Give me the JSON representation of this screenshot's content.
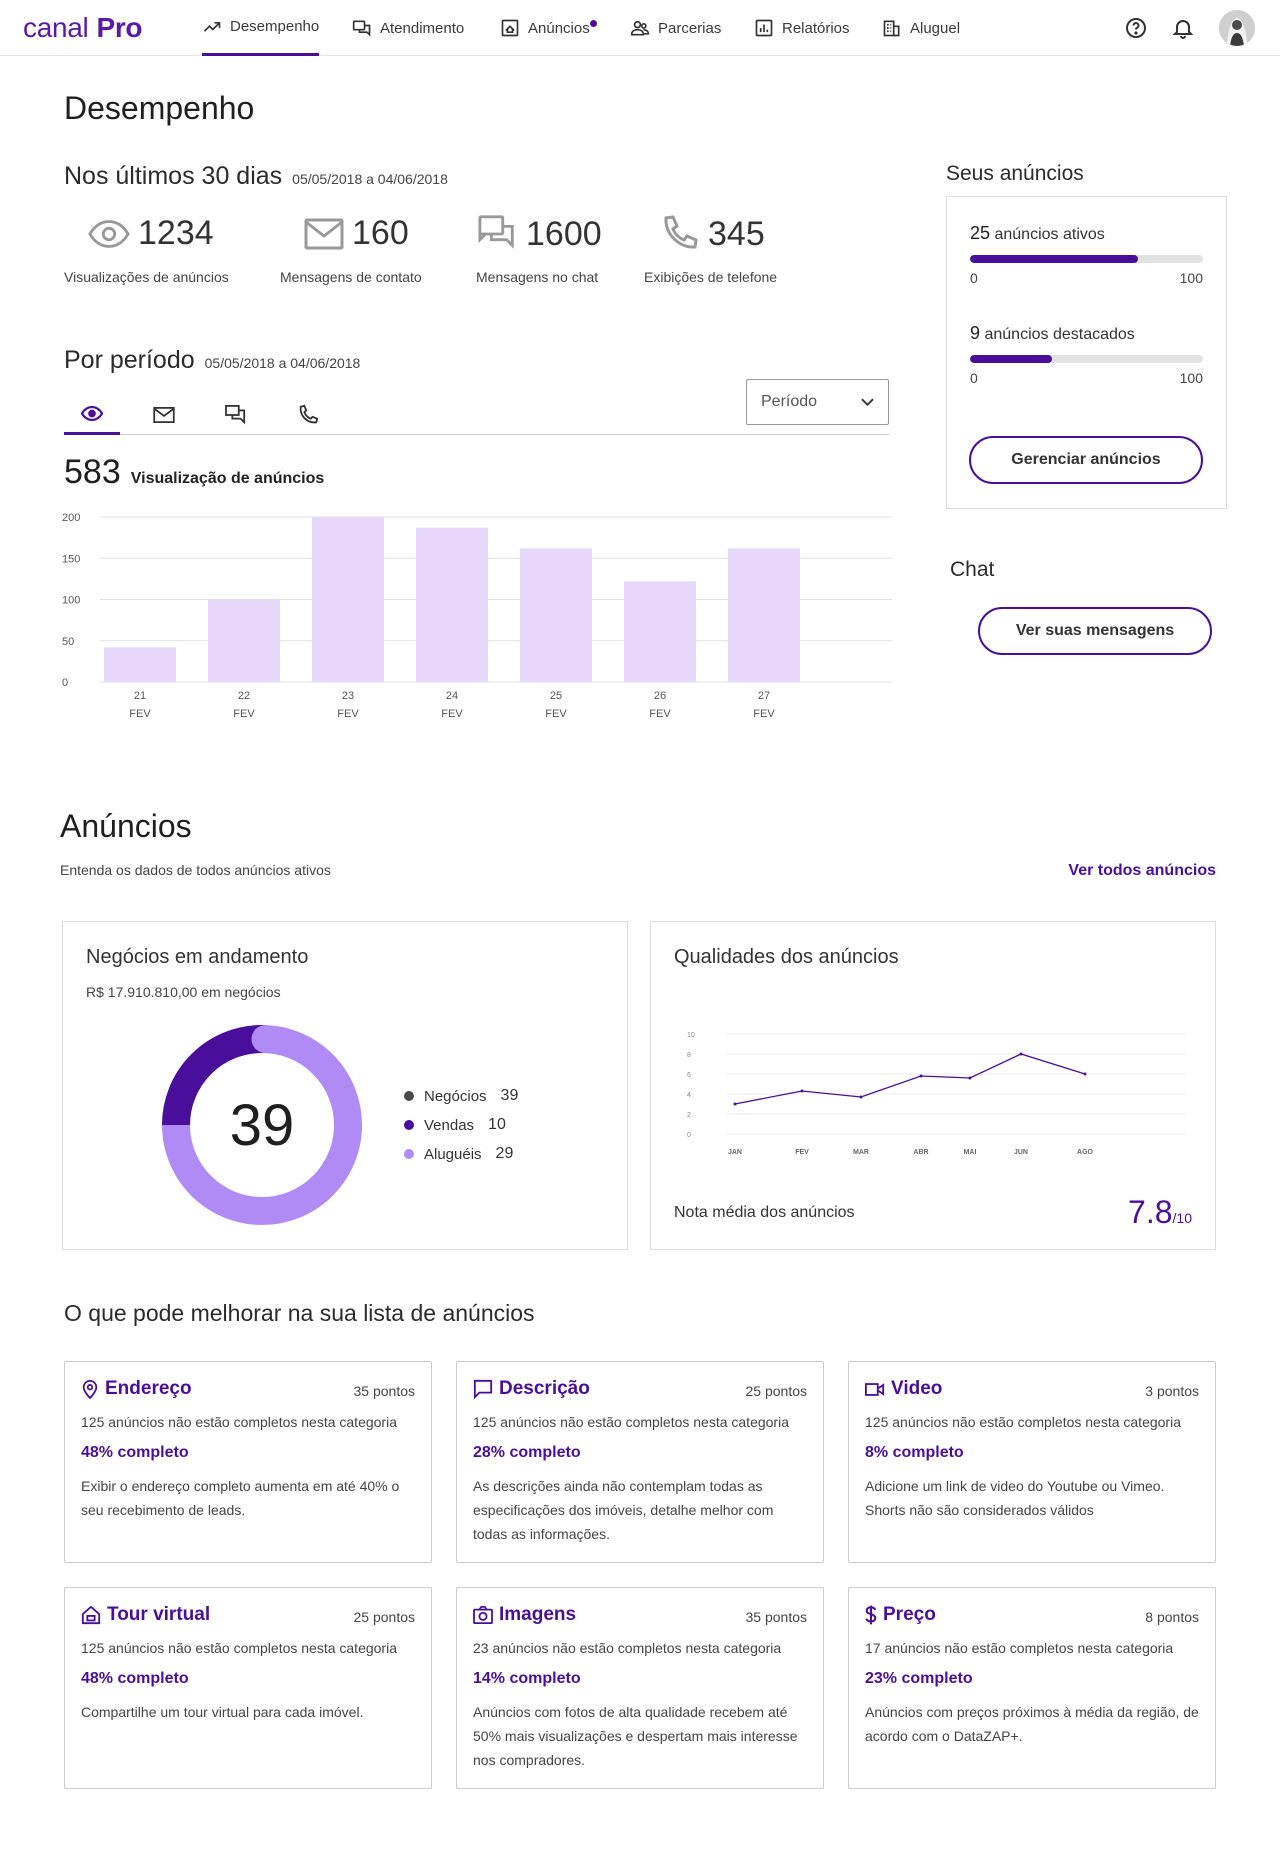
{
  "brand": {
    "name": "canal",
    "suffix": "Pro"
  },
  "nav": [
    {
      "label": "Desempenho",
      "icon": "trending-up-icon",
      "active": true
    },
    {
      "label": "Atendimento",
      "icon": "chat-icon"
    },
    {
      "label": "Anúncios",
      "icon": "listing-icon",
      "badge": true
    },
    {
      "label": "Parcerias",
      "icon": "partners-icon"
    },
    {
      "label": "Relatórios",
      "icon": "report-icon"
    },
    {
      "label": "Aluguel",
      "icon": "building-icon"
    }
  ],
  "page_title": "Desempenho",
  "last30": {
    "title": "Nos últimos 30 dias",
    "range": "05/05/2018 a 04/06/2018",
    "metrics": [
      {
        "value": "1234",
        "label": "Visualizações de anúncios",
        "icon": "eye-icon"
      },
      {
        "value": "160",
        "label": "Mensagens de contato",
        "icon": "mail-icon"
      },
      {
        "value": "1600",
        "label": "Mensagens no chat",
        "icon": "chat-icon"
      },
      {
        "value": "345",
        "label": "Exibições de telefone",
        "icon": "phone-icon"
      }
    ]
  },
  "period": {
    "title": "Por período",
    "range": "05/05/2018 a 04/06/2018",
    "select_label": "Período",
    "tabs": [
      "eye-icon",
      "mail-icon",
      "chat-icon",
      "phone-icon"
    ],
    "total": "583",
    "total_label": "Visualização de anúncios"
  },
  "chart_data": {
    "type": "bar",
    "categories": [
      "21 FEV",
      "22 FEV",
      "23 FEV",
      "24 FEV",
      "25 FEV",
      "26 FEV",
      "27 FEV"
    ],
    "cat_day": [
      "21",
      "22",
      "23",
      "24",
      "25",
      "26",
      "27"
    ],
    "cat_month": [
      "FEV",
      "FEV",
      "FEV",
      "FEV",
      "FEV",
      "FEV",
      "FEV"
    ],
    "values": [
      42,
      100,
      200,
      187,
      162,
      122,
      162
    ],
    "yticks": [
      "200",
      "150",
      "100",
      "50",
      "0"
    ],
    "ylim": [
      0,
      200
    ],
    "color": "#e6d7fb"
  },
  "seus": {
    "title": "Seus anúncios",
    "ativos": {
      "count": "25",
      "label": "anúncios ativos",
      "min": "0",
      "max": "100",
      "fraction": 0.72
    },
    "destacados": {
      "count": "9",
      "label": "anúncios destacados",
      "min": "0",
      "max": "100",
      "fraction": 0.35
    },
    "button": "Gerenciar anúncios"
  },
  "chat": {
    "title": "Chat",
    "button": "Ver suas mensagens"
  },
  "anuncios": {
    "title": "Anúncios",
    "subtitle": "Entenda os dados de todos anúncios ativos",
    "link": "Ver todos anúncios"
  },
  "negocios": {
    "title": "Negócios em andamento",
    "subtitle": "R$ 17.910.810,00 em negócios",
    "center": "39",
    "legend": [
      {
        "label": "Negócios",
        "value": "39",
        "color": "#4a4a4a"
      },
      {
        "label": "Vendas",
        "value": "10",
        "color": "#4a0f9a"
      },
      {
        "label": "Aluguéis",
        "value": "29",
        "color": "#b08af5"
      }
    ]
  },
  "qualidade": {
    "title": "Qualidades dos anúncios",
    "footer_label": "Nota média dos anúncios",
    "score": "7.8",
    "score_max": "/10",
    "chart_data": {
      "type": "line",
      "x": [
        "JAN",
        "FEV",
        "MAR",
        "ABR",
        "MAI",
        "JUN",
        "AGO"
      ],
      "y": [
        3,
        4.3,
        3.7,
        5.8,
        5.6,
        8,
        6
      ],
      "yticks": [
        "10",
        "8",
        "6",
        "4",
        "2",
        "0"
      ],
      "ylim": [
        0,
        10
      ]
    }
  },
  "melhorar": {
    "title": "O que pode melhorar na sua lista de anúncios",
    "cards": [
      {
        "title": "Endereço",
        "icon": "pin-icon",
        "points": "35 pontos",
        "desc": "125 anúncios não estão completos nesta categoria",
        "pct": "48% completo",
        "tip": "Exibir o endereço completo aumenta em até 40% o seu recebimento de leads."
      },
      {
        "title": "Descrição",
        "icon": "comment-icon",
        "points": "25 pontos",
        "desc": "125 anúncios não estão completos nesta categoria",
        "pct": "28% completo",
        "tip": "As descrições ainda não contemplam todas as especificações dos imóveis, detalhe melhor com todas as informações."
      },
      {
        "title": "Video",
        "icon": "video-icon",
        "points": "3 pontos",
        "desc": "125 anúncios não estão completos nesta categoria",
        "pct": "8% completo",
        "tip": "Adicione um link de video do Youtube ou Vimeo. Shorts não são considerados válidos"
      },
      {
        "title": "Tour virtual",
        "icon": "tour-icon",
        "points": "25 pontos",
        "desc": "125 anúncios não estão completos nesta categoria",
        "pct": "48% completo",
        "tip": "Compartilhe um tour virtual para cada imóvel."
      },
      {
        "title": "Imagens",
        "icon": "camera-icon",
        "points": "35 pontos",
        "desc": "23 anúncios não estão completos nesta categoria",
        "pct": "14% completo",
        "tip": "Anúncios com fotos de alta qualidade recebem até 50% mais visualizações e despertam mais interesse nos compradores."
      },
      {
        "title": "Preço",
        "icon": "dollar-icon",
        "points": "8 pontos",
        "desc": "17 anúncios não estão completos nesta categoria",
        "pct": "23% completo",
        "tip": "Anúncios com preços próximos à média da região, de acordo com o DataZAP+."
      }
    ]
  }
}
